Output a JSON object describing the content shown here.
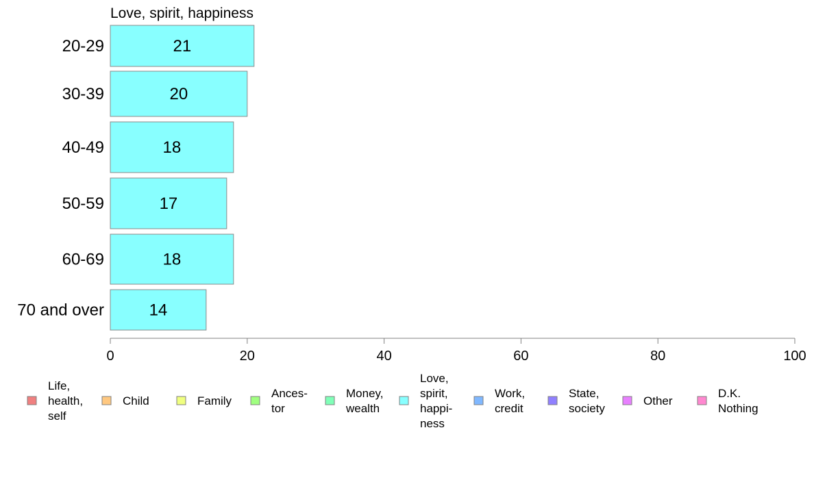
{
  "chart_data": {
    "type": "bar",
    "orientation": "horizontal",
    "title": "Love, spirit, happiness",
    "categories": [
      "20-29",
      "30-39",
      "40-49",
      "50-59",
      "60-69",
      "70 and over"
    ],
    "values": [
      21,
      20,
      18,
      17,
      18,
      14
    ],
    "data_labels": [
      "21",
      "20",
      "18",
      "17",
      "18",
      "14"
    ],
    "series_color": "#88ffff",
    "xlim": [
      0,
      100
    ],
    "xticks": [
      0,
      20,
      40,
      60,
      80,
      100
    ],
    "tick_labels": [
      "0",
      "20",
      "40",
      "60",
      "80",
      "100"
    ],
    "grid": false,
    "legend": {
      "placement": "bottom",
      "items": [
        {
          "label": "Life,\nhealth,\nself",
          "color": "#f08080"
        },
        {
          "label": "Child",
          "color": "#ffc880"
        },
        {
          "label": "Family",
          "color": "#f0ff80"
        },
        {
          "label": "Ances-\ntor",
          "color": "#a0ff80"
        },
        {
          "label": "Money,\nwealth",
          "color": "#80ffb8"
        },
        {
          "label": "Love,\nspirit,\nhappi-\nness",
          "color": "#88ffff"
        },
        {
          "label": "Work,\ncredit",
          "color": "#80b8ff"
        },
        {
          "label": "State,\nsociety",
          "color": "#9080ff"
        },
        {
          "label": "Other",
          "color": "#e880ff"
        },
        {
          "label": "D.K.\nNothing",
          "color": "#ff88d0"
        }
      ]
    }
  }
}
